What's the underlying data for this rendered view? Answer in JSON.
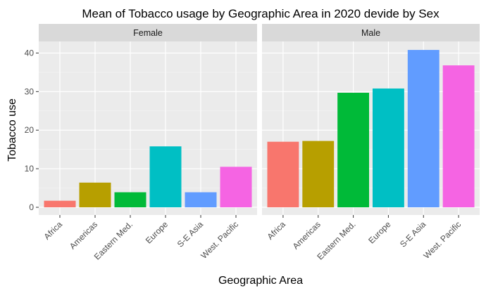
{
  "chart_data": {
    "type": "bar",
    "title": "Mean of Tobacco usage by Geographic Area in 2020 devide by Sex",
    "xlabel": "Geographic Area",
    "ylabel": "Tobacco use",
    "ylim": [
      -2,
      43
    ],
    "yticks": [
      0,
      10,
      20,
      30,
      40
    ],
    "grid": true,
    "categories": [
      "Africa",
      "Americas",
      "Eastern Med.",
      "Europe",
      "S-E Asia",
      "West. Pacific"
    ],
    "colors": [
      "#F8766D",
      "#B79F00",
      "#00BA38",
      "#00BFC4",
      "#619CFF",
      "#F564E3"
    ],
    "facets": [
      {
        "name": "Female",
        "values": [
          1.7,
          6.4,
          3.9,
          15.8,
          3.9,
          10.5
        ]
      },
      {
        "name": "Male",
        "values": [
          17.0,
          17.2,
          29.7,
          30.8,
          40.8,
          36.8
        ]
      }
    ]
  }
}
